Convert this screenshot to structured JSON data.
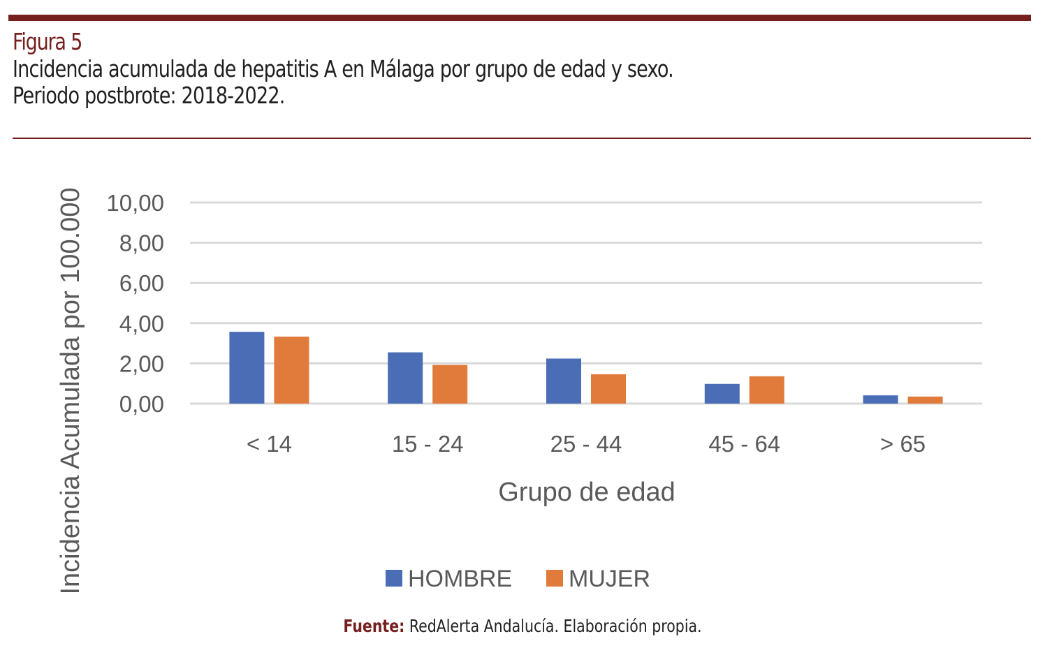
{
  "header": {
    "figure_label": "Figura 5",
    "title_line1": "Incidencia acumulada de hepatitis A en Málaga por grupo de edad y sexo.",
    "title_line2": "Periodo postbrote: 2018-2022."
  },
  "footer": {
    "source_label": "Fuente:",
    "source_text": " RedAlerta Andalucía. Elaboración propia."
  },
  "colors": {
    "accent": "#75201f",
    "hombre": "#4a6db5",
    "mujer": "#e07b3c",
    "grid": "#d9d9d9",
    "text": "#595959"
  },
  "chart_data": {
    "type": "bar",
    "title": "",
    "xlabel": "Grupo de edad",
    "ylabel": "Incidencia Acumulada por 100.000",
    "categories": [
      "< 14",
      "15 - 24",
      "25 - 44",
      "45 - 64",
      "> 65"
    ],
    "series": [
      {
        "name": "HOMBRE",
        "color": "#4a6db5",
        "values": [
          3.57,
          2.55,
          2.24,
          0.98,
          0.41
        ]
      },
      {
        "name": "MUJER",
        "color": "#e07b3c",
        "values": [
          3.33,
          1.92,
          1.46,
          1.36,
          0.35
        ]
      }
    ],
    "ylim": [
      0,
      10
    ],
    "yticks": [
      0,
      2,
      4,
      6,
      8,
      10
    ],
    "ytick_labels": [
      "0,00",
      "2,00",
      "4,00",
      "6,00",
      "8,00",
      "10,00"
    ],
    "grid": true,
    "legend_position": "bottom"
  }
}
